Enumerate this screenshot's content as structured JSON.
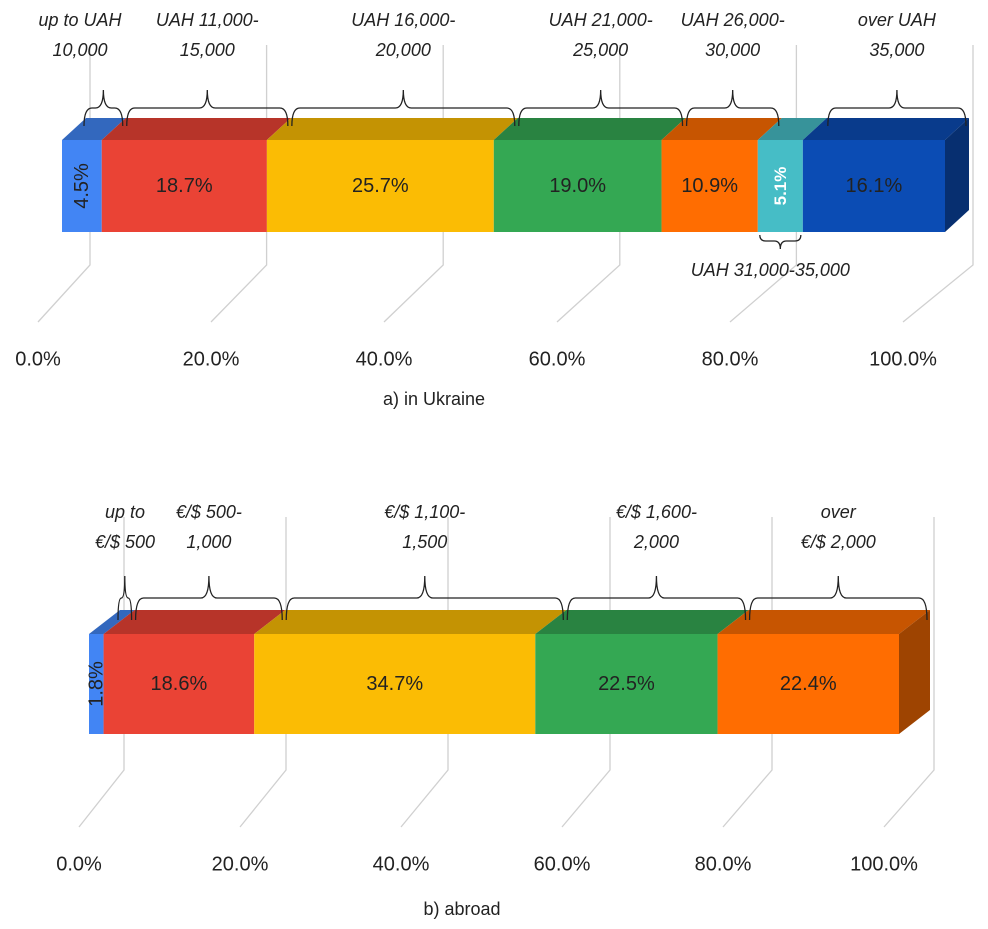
{
  "chart_data": [
    {
      "type": "bar",
      "orientation": "horizontal",
      "stacked": true,
      "percent_scale": true,
      "caption": "a) in Ukraine",
      "xlim": [
        0,
        100
      ],
      "x_ticks": [
        "0.0%",
        "20.0%",
        "40.0%",
        "60.0%",
        "80.0%",
        "100.0%"
      ],
      "series": [
        {
          "name": "up to UAH 10,000",
          "value": 4.5,
          "label": "4.5%",
          "color": "#4285f4",
          "range_label": [
            "up to UAH",
            "10,000"
          ]
        },
        {
          "name": "UAH 11,000-15,000",
          "value": 18.7,
          "label": "18.7%",
          "color": "#ea4335",
          "range_label": [
            "UAH 11,000-",
            "15,000"
          ]
        },
        {
          "name": "UAH 16,000-20,000",
          "value": 25.7,
          "label": "25.7%",
          "color": "#fbbc04",
          "range_label": [
            "UAH 16,000-",
            "20,000"
          ]
        },
        {
          "name": "UAH 21,000-25,000",
          "value": 19.0,
          "label": "19.0%",
          "color": "#34a853",
          "range_label": [
            "UAH 21,000-",
            "25,000"
          ]
        },
        {
          "name": "UAH 26,000-30,000",
          "value": 10.9,
          "label": "10.9%",
          "color": "#ff6d01",
          "range_label": [
            "UAH 26,000-",
            "30,000"
          ]
        },
        {
          "name": "UAH 31,000-35,000",
          "value": 5.1,
          "label": "5.1%",
          "color": "#46bdc6",
          "range_label": [
            "UAH 31,000-35,000"
          ],
          "label_below": true
        },
        {
          "name": "over UAH 35,000",
          "value": 16.1,
          "label": "16.1%",
          "color": "#0b4cb4",
          "range_label": [
            "over UAH",
            "35,000"
          ]
        }
      ]
    },
    {
      "type": "bar",
      "orientation": "horizontal",
      "stacked": true,
      "percent_scale": true,
      "caption": "b) abroad",
      "xlim": [
        0,
        100
      ],
      "x_ticks": [
        "0.0%",
        "20.0%",
        "40.0%",
        "60.0%",
        "80.0%",
        "100.0%"
      ],
      "series": [
        {
          "name": "up to €/$ 500",
          "value": 1.8,
          "label": "1.8%",
          "color": "#4285f4",
          "range_label": [
            "up to",
            "€/$ 500"
          ]
        },
        {
          "name": "€/$ 500-1,000",
          "value": 18.6,
          "label": "18.6%",
          "color": "#ea4335",
          "range_label": [
            "€/$ 500-",
            "1,000"
          ]
        },
        {
          "name": "€/$ 1,100-1,500",
          "value": 34.7,
          "label": "34.7%",
          "color": "#fbbc04",
          "range_label": [
            "€/$ 1,100-",
            "1,500"
          ]
        },
        {
          "name": "€/$ 1,600-2,000",
          "value": 22.5,
          "label": "22.5%",
          "color": "#34a853",
          "range_label": [
            "€/$ 1,600-",
            "2,000"
          ]
        },
        {
          "name": "over €/$ 2,000",
          "value": 22.4,
          "label": "22.4%",
          "color": "#ff6d01",
          "range_label": [
            "over",
            "€/$ 2,000"
          ]
        }
      ]
    }
  ]
}
